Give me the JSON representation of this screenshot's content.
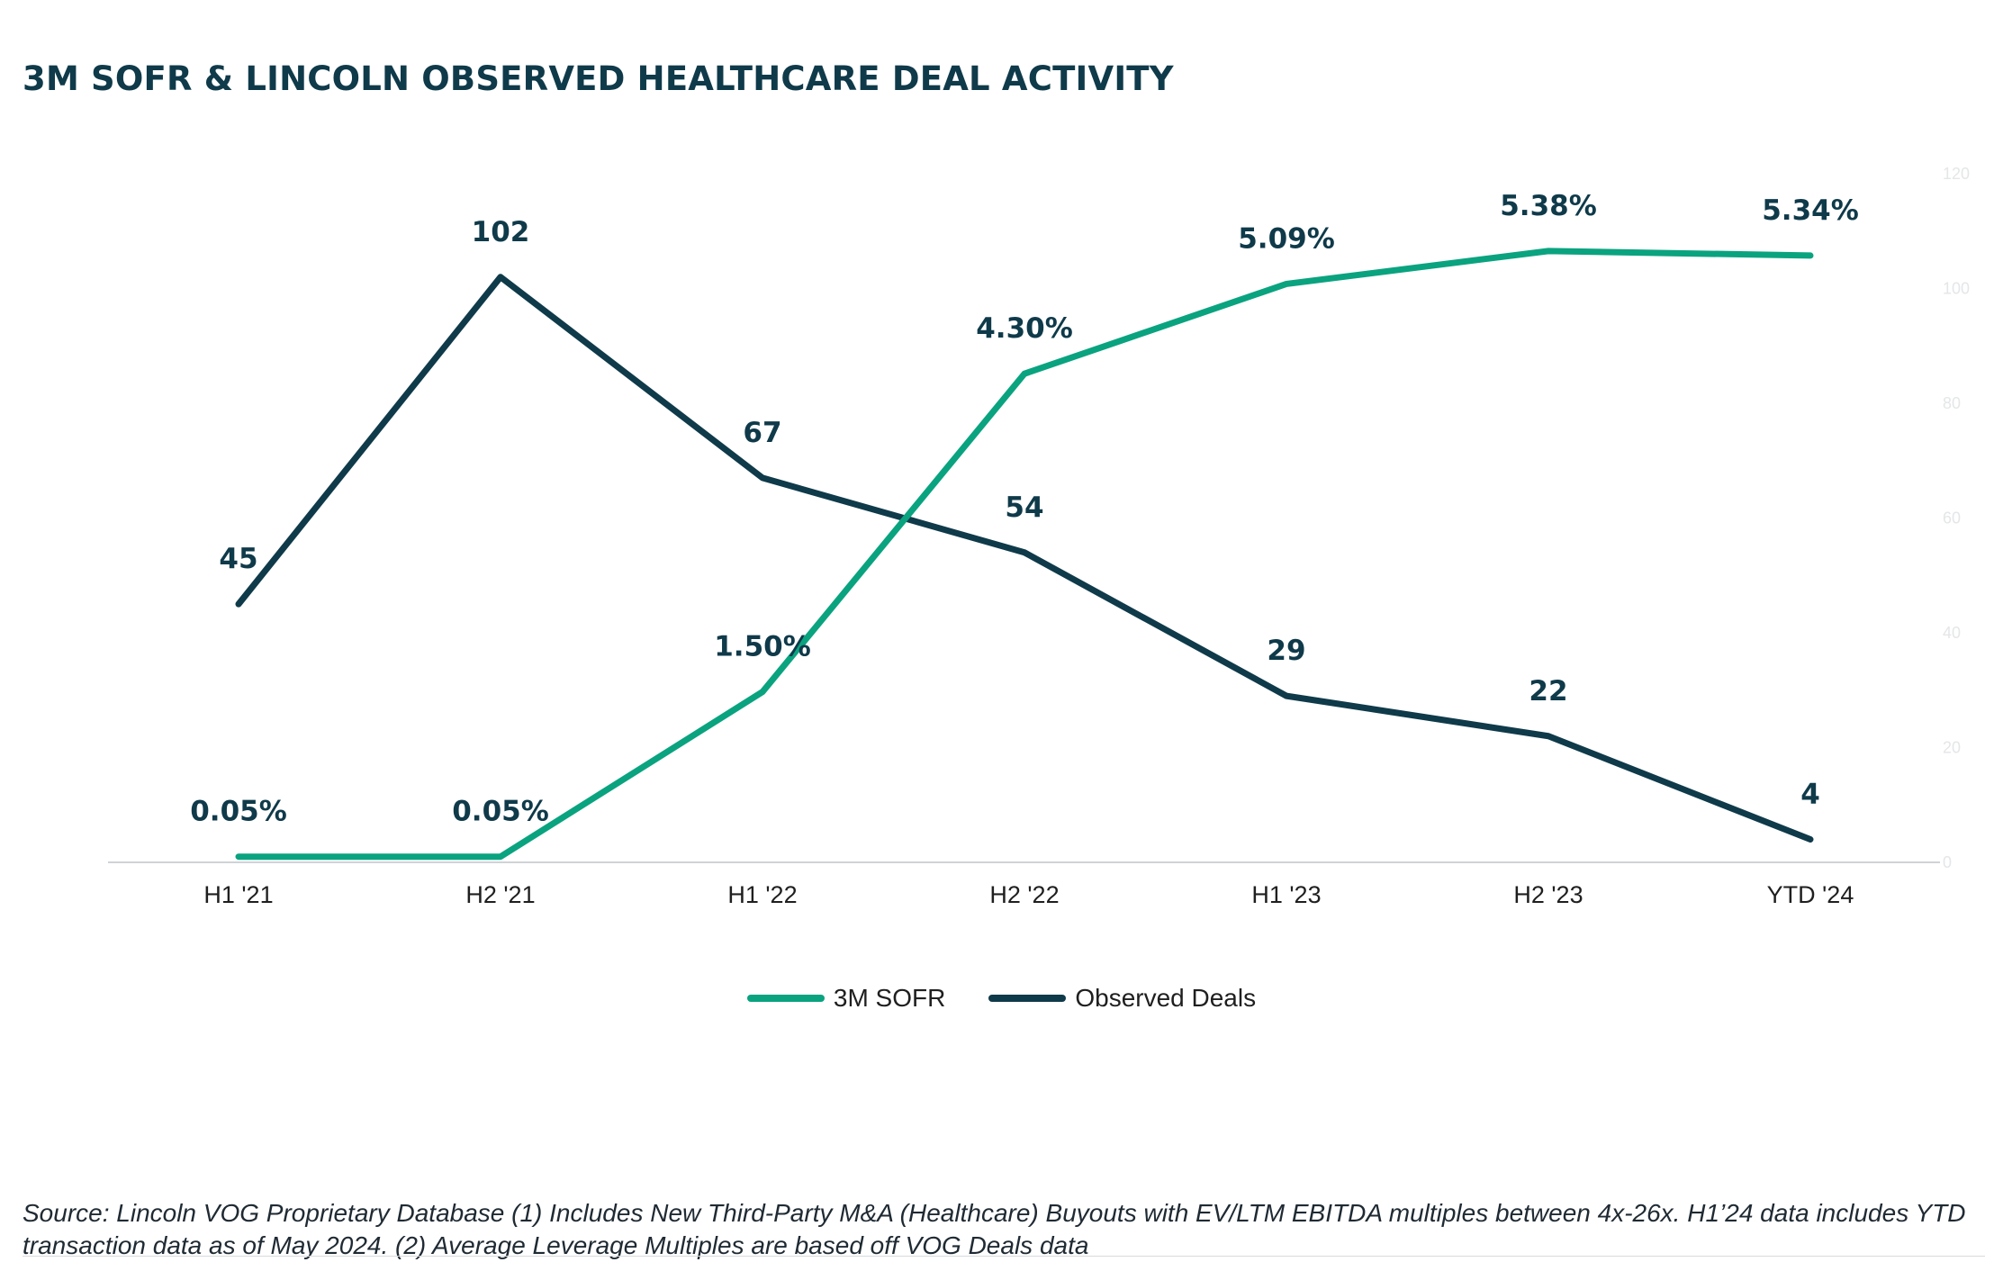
{
  "title": "3M SOFR & LINCOLN OBSERVED HEALTHCARE DEAL ACTIVITY",
  "source_note": "Source: Lincoln VOG Proprietary Database (1) Includes New Third-Party M&A (Healthcare) Buyouts with EV/LTM EBITDA multiples between 4x-26x. H1’24 data includes YTD transaction data as of May 2024. (2) Average Leverage Multiples are based off VOG Deals data",
  "colors": {
    "sofr": "#0aa37f",
    "deals": "#0f3a4a",
    "axis": "#d0d3d6",
    "right_tick": "#e4e6e8",
    "label_text": "#0f3a4a",
    "x_tick_text": "#1f1f1f"
  },
  "chart_data": {
    "type": "line",
    "title": "3M SOFR & LINCOLN OBSERVED HEALTHCARE DEAL ACTIVITY",
    "categories": [
      "H1 '21",
      "H2 '21",
      "H1 '22",
      "H2 '22",
      "H1 '23",
      "H2 '23",
      "YTD '24"
    ],
    "right_axis": {
      "ticks": [
        "0",
        "20",
        "40",
        "60",
        "80",
        "100",
        "120"
      ],
      "ylim": [
        0,
        120
      ]
    },
    "sofr_axis": {
      "ylim": [
        0,
        6.06
      ]
    },
    "legend_position": "bottom-center",
    "grid": false,
    "series": [
      {
        "name": "3M SOFR",
        "key": "sofr",
        "values": [
          0.05,
          0.05,
          1.5,
          4.3,
          5.09,
          5.38,
          5.34
        ],
        "labels": [
          "0.05%",
          "0.05%",
          "1.50%",
          "4.30%",
          "5.09%",
          "5.38%",
          "5.34%"
        ]
      },
      {
        "name": "Observed Deals",
        "key": "deals",
        "values": [
          45,
          102,
          67,
          54,
          29,
          22,
          4
        ],
        "labels": [
          "45",
          "102",
          "67",
          "54",
          "29",
          "22",
          "4"
        ]
      }
    ]
  }
}
